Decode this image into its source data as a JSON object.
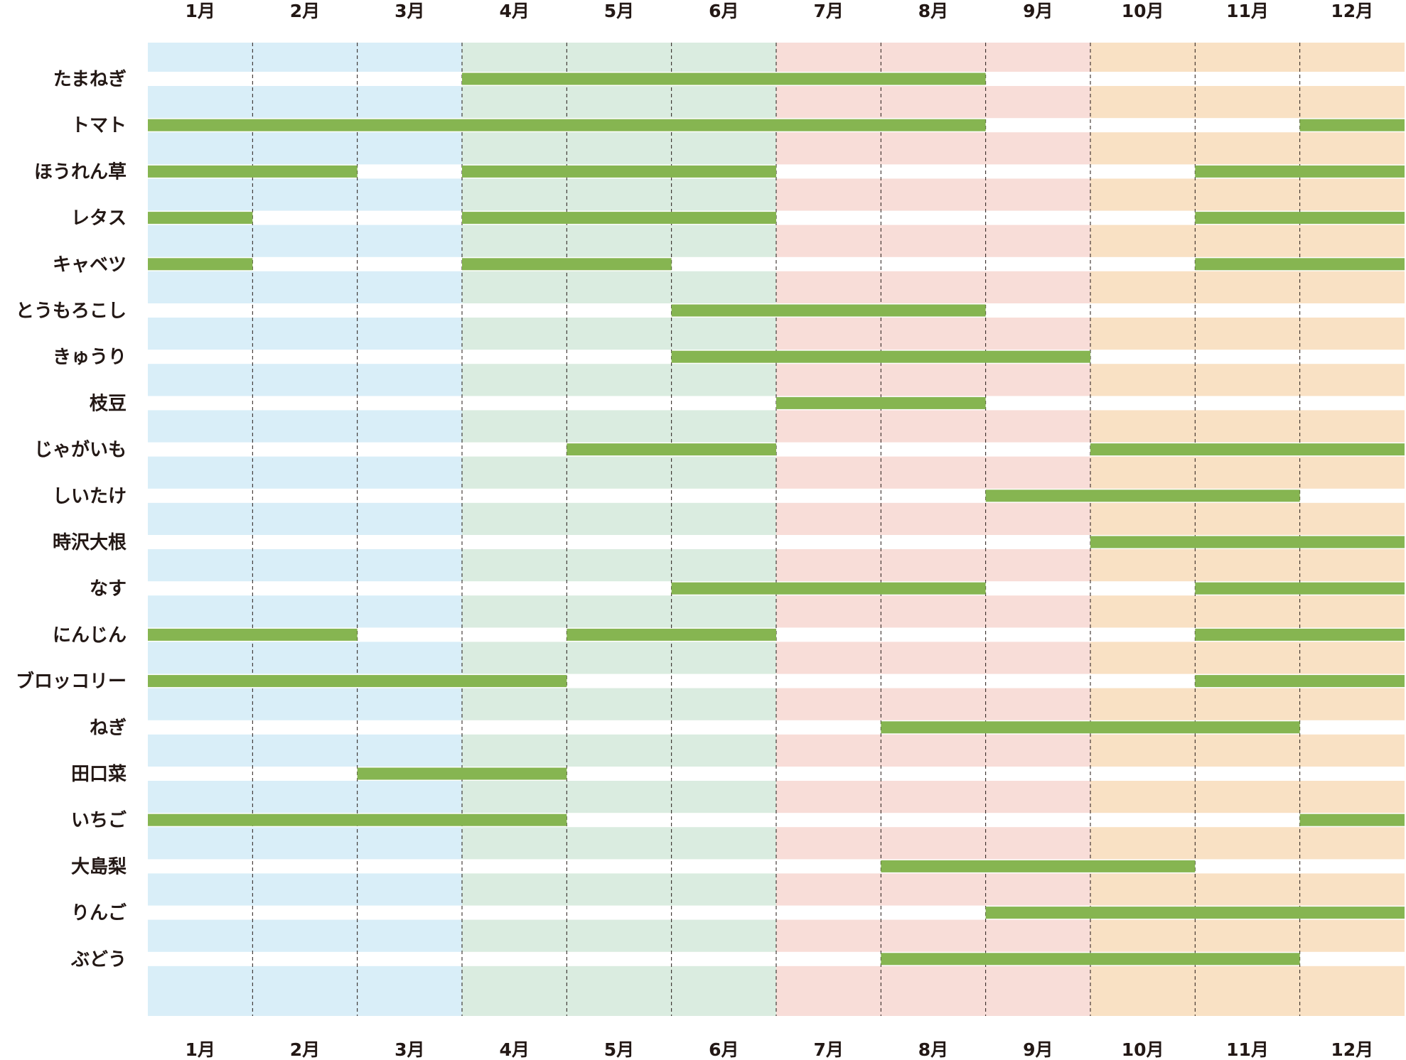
{
  "chart_data": {
    "type": "gantt",
    "title": "",
    "months": [
      "1月",
      "2月",
      "3月",
      "4月",
      "5月",
      "6月",
      "7月",
      "8月",
      "9月",
      "10月",
      "11月",
      "12月"
    ],
    "seasons": [
      {
        "name": "winter",
        "start_month": 1,
        "end_month": 3,
        "color": "#d9eef8"
      },
      {
        "name": "spring",
        "start_month": 4,
        "end_month": 6,
        "color": "#daece0"
      },
      {
        "name": "summer",
        "start_month": 7,
        "end_month": 9,
        "color": "#f8ddd8"
      },
      {
        "name": "autumn",
        "start_month": 10,
        "end_month": 12,
        "color": "#f9e1c4"
      }
    ],
    "bar_color": "#86b551",
    "items": [
      {
        "name": "たまねぎ",
        "ranges": [
          [
            4,
            8
          ]
        ]
      },
      {
        "name": "トマト",
        "ranges": [
          [
            1,
            8
          ],
          [
            12,
            12
          ]
        ]
      },
      {
        "name": "ほうれん草",
        "ranges": [
          [
            1,
            2
          ],
          [
            4,
            6
          ],
          [
            11,
            12
          ]
        ]
      },
      {
        "name": "レタス",
        "ranges": [
          [
            1,
            1
          ],
          [
            4,
            6
          ],
          [
            11,
            12
          ]
        ]
      },
      {
        "name": "キャベツ",
        "ranges": [
          [
            1,
            1
          ],
          [
            4,
            5
          ],
          [
            11,
            12
          ]
        ]
      },
      {
        "name": "とうもろこし",
        "ranges": [
          [
            6,
            8
          ]
        ]
      },
      {
        "name": "きゅうり",
        "ranges": [
          [
            6,
            9
          ]
        ]
      },
      {
        "name": "枝豆",
        "ranges": [
          [
            7,
            8
          ]
        ]
      },
      {
        "name": "じゃがいも",
        "ranges": [
          [
            5,
            6
          ],
          [
            10,
            12
          ]
        ]
      },
      {
        "name": "しいたけ",
        "ranges": [
          [
            9,
            11
          ]
        ]
      },
      {
        "name": "時沢大根",
        "ranges": [
          [
            10,
            12
          ]
        ]
      },
      {
        "name": "なす",
        "ranges": [
          [
            6,
            8
          ],
          [
            11,
            12
          ]
        ]
      },
      {
        "name": "にんじん",
        "ranges": [
          [
            1,
            2
          ],
          [
            5,
            6
          ],
          [
            11,
            12
          ]
        ]
      },
      {
        "name": "ブロッコリー",
        "ranges": [
          [
            1,
            4
          ],
          [
            11,
            12
          ]
        ]
      },
      {
        "name": "ねぎ",
        "ranges": [
          [
            8,
            11
          ]
        ]
      },
      {
        "name": "田口菜",
        "ranges": [
          [
            3,
            4
          ]
        ]
      },
      {
        "name": "いちご",
        "ranges": [
          [
            1,
            4
          ],
          [
            12,
            12
          ]
        ]
      },
      {
        "name": "大島梨",
        "ranges": [
          [
            8,
            10
          ]
        ]
      },
      {
        "name": "りんご",
        "ranges": [
          [
            9,
            12
          ]
        ]
      },
      {
        "name": "ぶどう",
        "ranges": [
          [
            8,
            11
          ]
        ]
      }
    ]
  }
}
